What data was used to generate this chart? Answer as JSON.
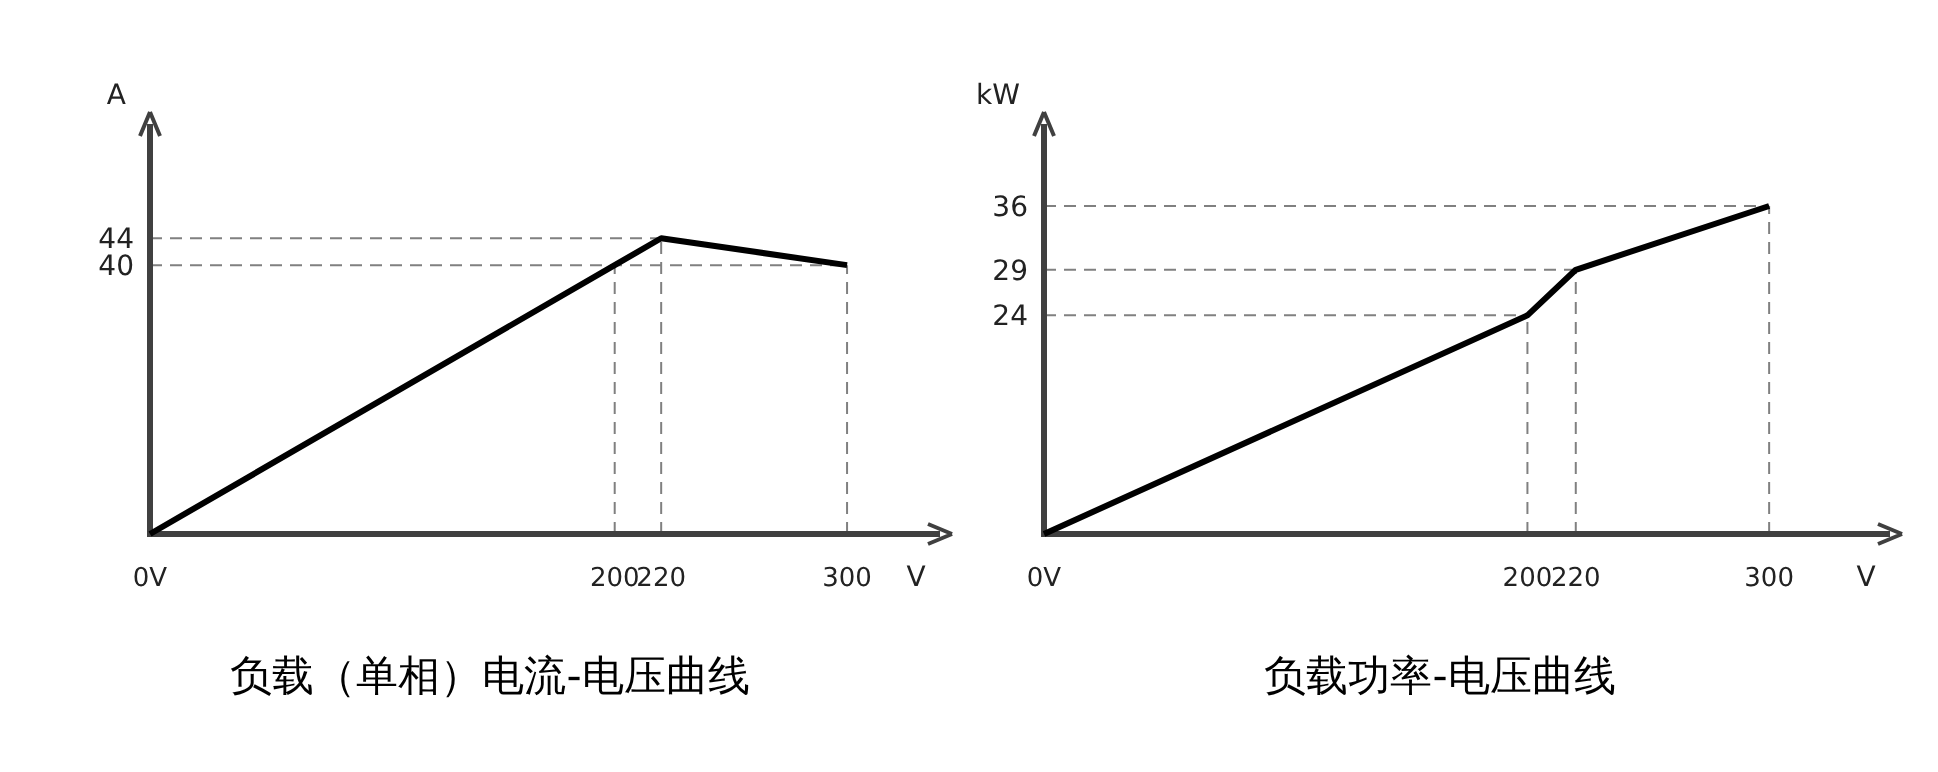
{
  "chart_data": [
    {
      "type": "line",
      "title": "负载（单相）电流-电压曲线",
      "xlabel": "V",
      "ylabel": "A",
      "x": [
        0,
        200,
        220,
        300
      ],
      "series": [
        {
          "color": "#000000",
          "values": [
            0,
            40,
            44,
            40
          ]
        }
      ],
      "xlim": [
        0,
        340
      ],
      "ylim": [
        0,
        61
      ],
      "xticks": [
        {
          "value": 0,
          "label": "0V"
        },
        200,
        220,
        300
      ],
      "yticks": [
        40,
        44
      ],
      "ref_lines": [
        {
          "axis": "x",
          "value": 200,
          "color": "#808080",
          "line_style": "dashed"
        },
        {
          "axis": "x",
          "value": 220,
          "color": "#808080",
          "line_style": "dashed"
        },
        {
          "axis": "x",
          "value": 300,
          "color": "#808080",
          "line_style": "dashed"
        },
        {
          "axis": "y",
          "value": 40,
          "color": "#808080",
          "line_style": "dashed"
        },
        {
          "axis": "y",
          "value": 44,
          "color": "#808080",
          "line_style": "dashed"
        }
      ],
      "marker": "none",
      "line_style": "solid"
    },
    {
      "type": "line",
      "title": "负载功率-电压曲线",
      "xlabel": "V",
      "ylabel": "kW",
      "x": [
        0,
        200,
        220,
        300
      ],
      "series": [
        {
          "color": "#000000",
          "values": [
            0,
            24,
            29,
            36
          ]
        }
      ],
      "xlim": [
        0,
        350
      ],
      "ylim": [
        0,
        45
      ],
      "xticks": [
        {
          "value": 0,
          "label": "0V"
        },
        200,
        220,
        300
      ],
      "yticks": [
        24,
        29,
        36
      ],
      "ref_lines": [
        {
          "axis": "x",
          "value": 200,
          "color": "#808080",
          "line_style": "dashed"
        },
        {
          "axis": "x",
          "value": 220,
          "color": "#808080",
          "line_style": "dashed"
        },
        {
          "axis": "x",
          "value": 300,
          "color": "#808080",
          "line_style": "dashed"
        },
        {
          "axis": "y",
          "value": 24,
          "color": "#808080",
          "line_style": "dashed"
        },
        {
          "axis": "y",
          "value": 29,
          "color": "#808080",
          "line_style": "dashed"
        },
        {
          "axis": "y",
          "value": 36,
          "color": "#808080",
          "line_style": "dashed"
        }
      ],
      "marker": "none",
      "line_style": "solid"
    }
  ]
}
